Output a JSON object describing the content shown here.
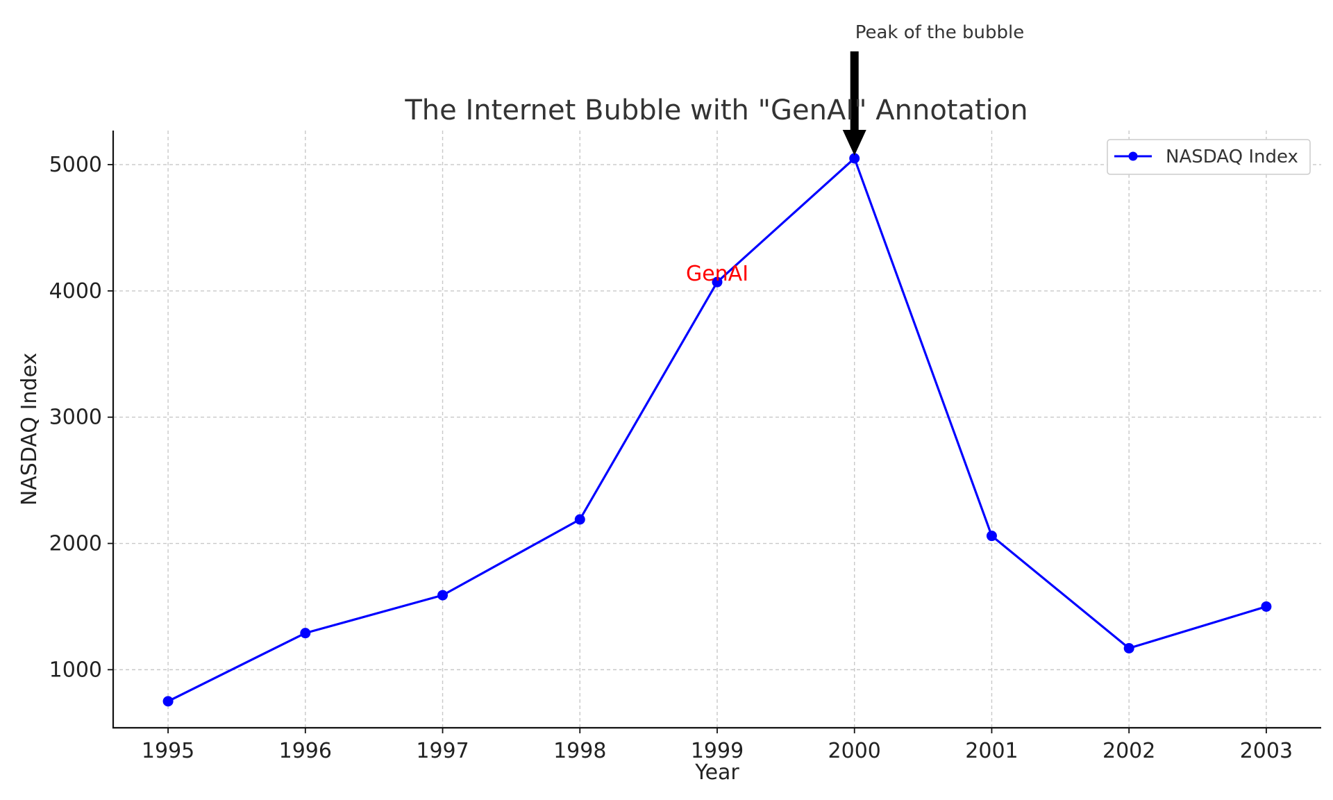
{
  "chart_data": {
    "type": "line",
    "title": "The Internet Bubble with \"GenAI\" Annotation",
    "xlabel": "Year",
    "ylabel": "NASDAQ Index",
    "x": [
      "1995",
      "1996",
      "1997",
      "1998",
      "1999",
      "2000",
      "2001",
      "2002",
      "2003"
    ],
    "xlim": [
      1994.6,
      2003.4
    ],
    "ylim": [
      540,
      5270
    ],
    "yticks": [
      1000,
      2000,
      3000,
      4000,
      5000
    ],
    "grid": true,
    "legend_position": "top-right",
    "series": [
      {
        "name": "NASDAQ Index",
        "color": "#0000ff",
        "marker": "circle",
        "values": [
          750,
          1290,
          1590,
          2190,
          4070,
          5050,
          2060,
          1170,
          1500
        ]
      }
    ],
    "annotations": [
      {
        "text": "Peak of the bubble",
        "x": 2000,
        "y": 5050,
        "arrow": true,
        "color": "#333333"
      },
      {
        "text": "GenAI",
        "x": 1999,
        "y": 4070,
        "arrow": false,
        "color": "#ff0000"
      }
    ]
  }
}
